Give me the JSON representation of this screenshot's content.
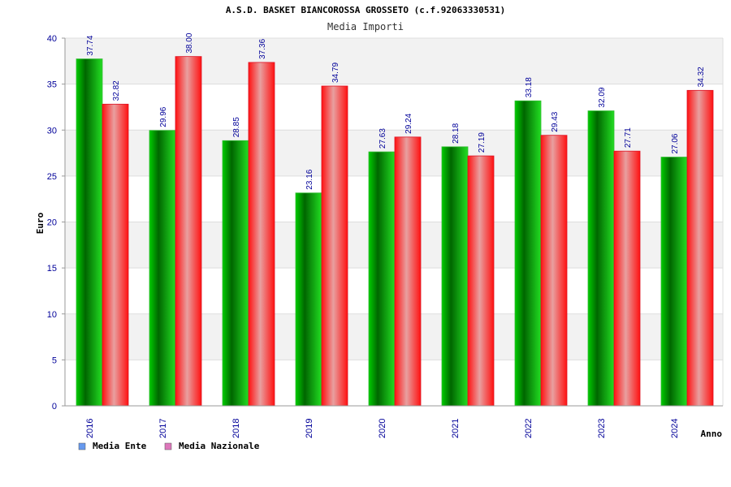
{
  "chart_data": {
    "type": "bar",
    "title": "A.S.D. BASKET BIANCOROSSA GROSSETO (c.f.92063330531)",
    "subtitle": "Media Importi",
    "xlabel": "Anno",
    "ylabel": "Euro",
    "ylim": [
      0,
      40
    ],
    "yticks": [
      "0",
      "5",
      "10",
      "15",
      "20",
      "25",
      "30",
      "35",
      "40"
    ],
    "categories": [
      "2016",
      "2017",
      "2018",
      "2019",
      "2020",
      "2021",
      "2022",
      "2023",
      "2024"
    ],
    "series": [
      {
        "name": "Media Ente",
        "values": [
          37.74,
          29.96,
          28.85,
          23.16,
          27.63,
          28.18,
          33.18,
          32.09,
          27.06
        ],
        "labels": [
          "37.74",
          "29.96",
          "28.85",
          "23.16",
          "27.63",
          "28.18",
          "33.18",
          "32.09",
          "27.06"
        ],
        "color": "#00aa00",
        "legend_color": "#6699ee"
      },
      {
        "name": "Media Nazionale",
        "values": [
          32.82,
          38.0,
          37.36,
          34.79,
          29.24,
          27.19,
          29.43,
          27.71,
          34.32
        ],
        "labels": [
          "32.82",
          "38.00",
          "37.36",
          "34.79",
          "29.24",
          "27.19",
          "29.43",
          "27.71",
          "34.32"
        ],
        "color": "#ee1122",
        "legend_color": "#dd77bb"
      }
    ],
    "grid": true,
    "legend_position": "bottom-left"
  }
}
